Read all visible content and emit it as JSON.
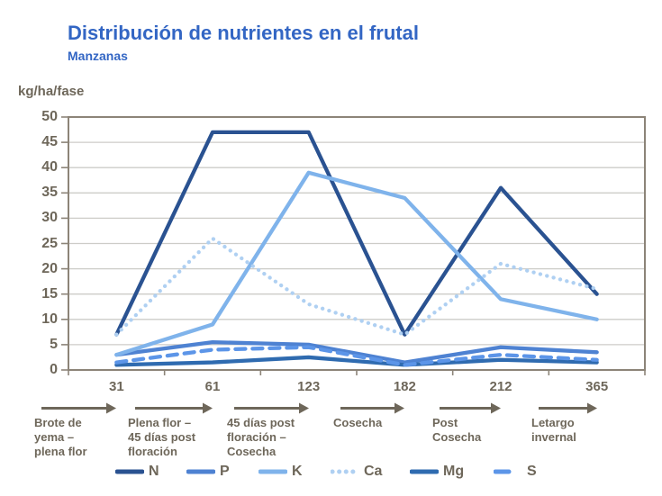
{
  "chart_data": {
    "type": "line",
    "title": "Distribución de nutrientes en el frutal",
    "subtitle": "Manzanas",
    "ylabel": "kg/ha/fase",
    "xlabel": "",
    "ylim": [
      0,
      50
    ],
    "yticks": [
      0,
      5,
      10,
      15,
      20,
      25,
      30,
      35,
      40,
      45,
      50
    ],
    "grid": true,
    "legend_position": "bottom",
    "categories": [
      "31",
      "61",
      "123",
      "182",
      "212",
      "365"
    ],
    "series": [
      {
        "name": "N",
        "style": "solid",
        "color": "#2A5291",
        "values": [
          7,
          47,
          47,
          7,
          36,
          15
        ]
      },
      {
        "name": "P",
        "style": "solid",
        "color": "#4E82D2",
        "values": [
          3,
          5.5,
          5,
          1.5,
          4.5,
          3.5
        ]
      },
      {
        "name": "K",
        "style": "solid",
        "color": "#7FB3EB",
        "values": [
          3,
          9,
          39,
          34,
          14,
          10
        ]
      },
      {
        "name": "Ca",
        "style": "dotted",
        "color": "#AFD0F2",
        "values": [
          7,
          26,
          13,
          7,
          21,
          16
        ]
      },
      {
        "name": "Mg",
        "style": "solid",
        "color": "#2F6BB0",
        "values": [
          1,
          1.5,
          2.5,
          1,
          2,
          1.5
        ]
      },
      {
        "name": "S",
        "style": "dashed",
        "color": "#5C95E8",
        "values": [
          1.5,
          4,
          4.5,
          1,
          3,
          2
        ]
      }
    ]
  },
  "phases": [
    {
      "end_day": "31",
      "label": "Brote de\nyema –\nplena flor"
    },
    {
      "end_day": "61",
      "label": "Plena flor –\n45 días post\nfloración"
    },
    {
      "end_day": "123",
      "label": "45 días post\nfloración –\nCosecha"
    },
    {
      "end_day": "182",
      "label": "Cosecha"
    },
    {
      "end_day": "212",
      "label": "Post\nCosecha"
    },
    {
      "end_day": "365",
      "label": "Letargo\ninvernal"
    }
  ],
  "colors": {
    "title_text": "#3366C4",
    "axis_text": "#6E675A",
    "gridline": "#CDCCC8",
    "plot_border": "#8C8478",
    "arrow": "#6E675A"
  }
}
